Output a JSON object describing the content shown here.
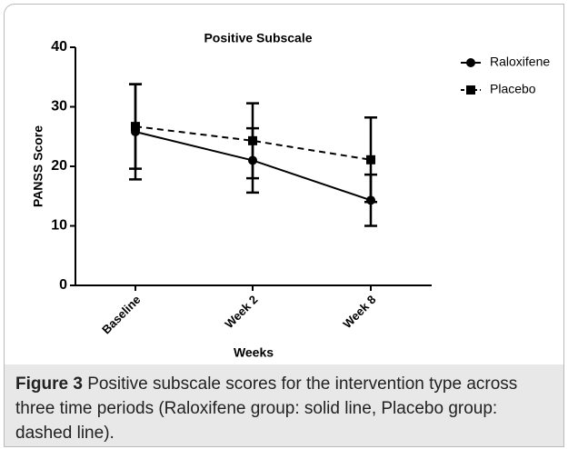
{
  "chart_data": {
    "type": "line",
    "title": "Positive Subscale",
    "x_label": "Weeks",
    "y_label": "PANSS Score",
    "categories": [
      "Baseline",
      "Week 2",
      "Week 8"
    ],
    "ylim": [
      0,
      40
    ],
    "yticks": [
      0,
      10,
      20,
      30,
      40
    ],
    "legend": "top-right",
    "series": [
      {
        "name": "Raloxifene",
        "color": "#000000",
        "marker": "circle",
        "linestyle": "solid",
        "values": [
          25.8,
          21.0,
          14.3
        ],
        "errors": [
          8.0,
          5.4,
          4.3
        ]
      },
      {
        "name": "Placebo",
        "color": "#000000",
        "marker": "square",
        "linestyle": "dashed",
        "values": [
          26.7,
          24.3,
          21.1
        ],
        "errors": [
          7.1,
          6.3,
          7.1
        ]
      }
    ]
  },
  "caption": {
    "label": "Figure 3",
    "text": "Positive subscale scores for the intervention type across three time periods (Raloxifene group: solid line, Placebo group: dashed line)."
  }
}
